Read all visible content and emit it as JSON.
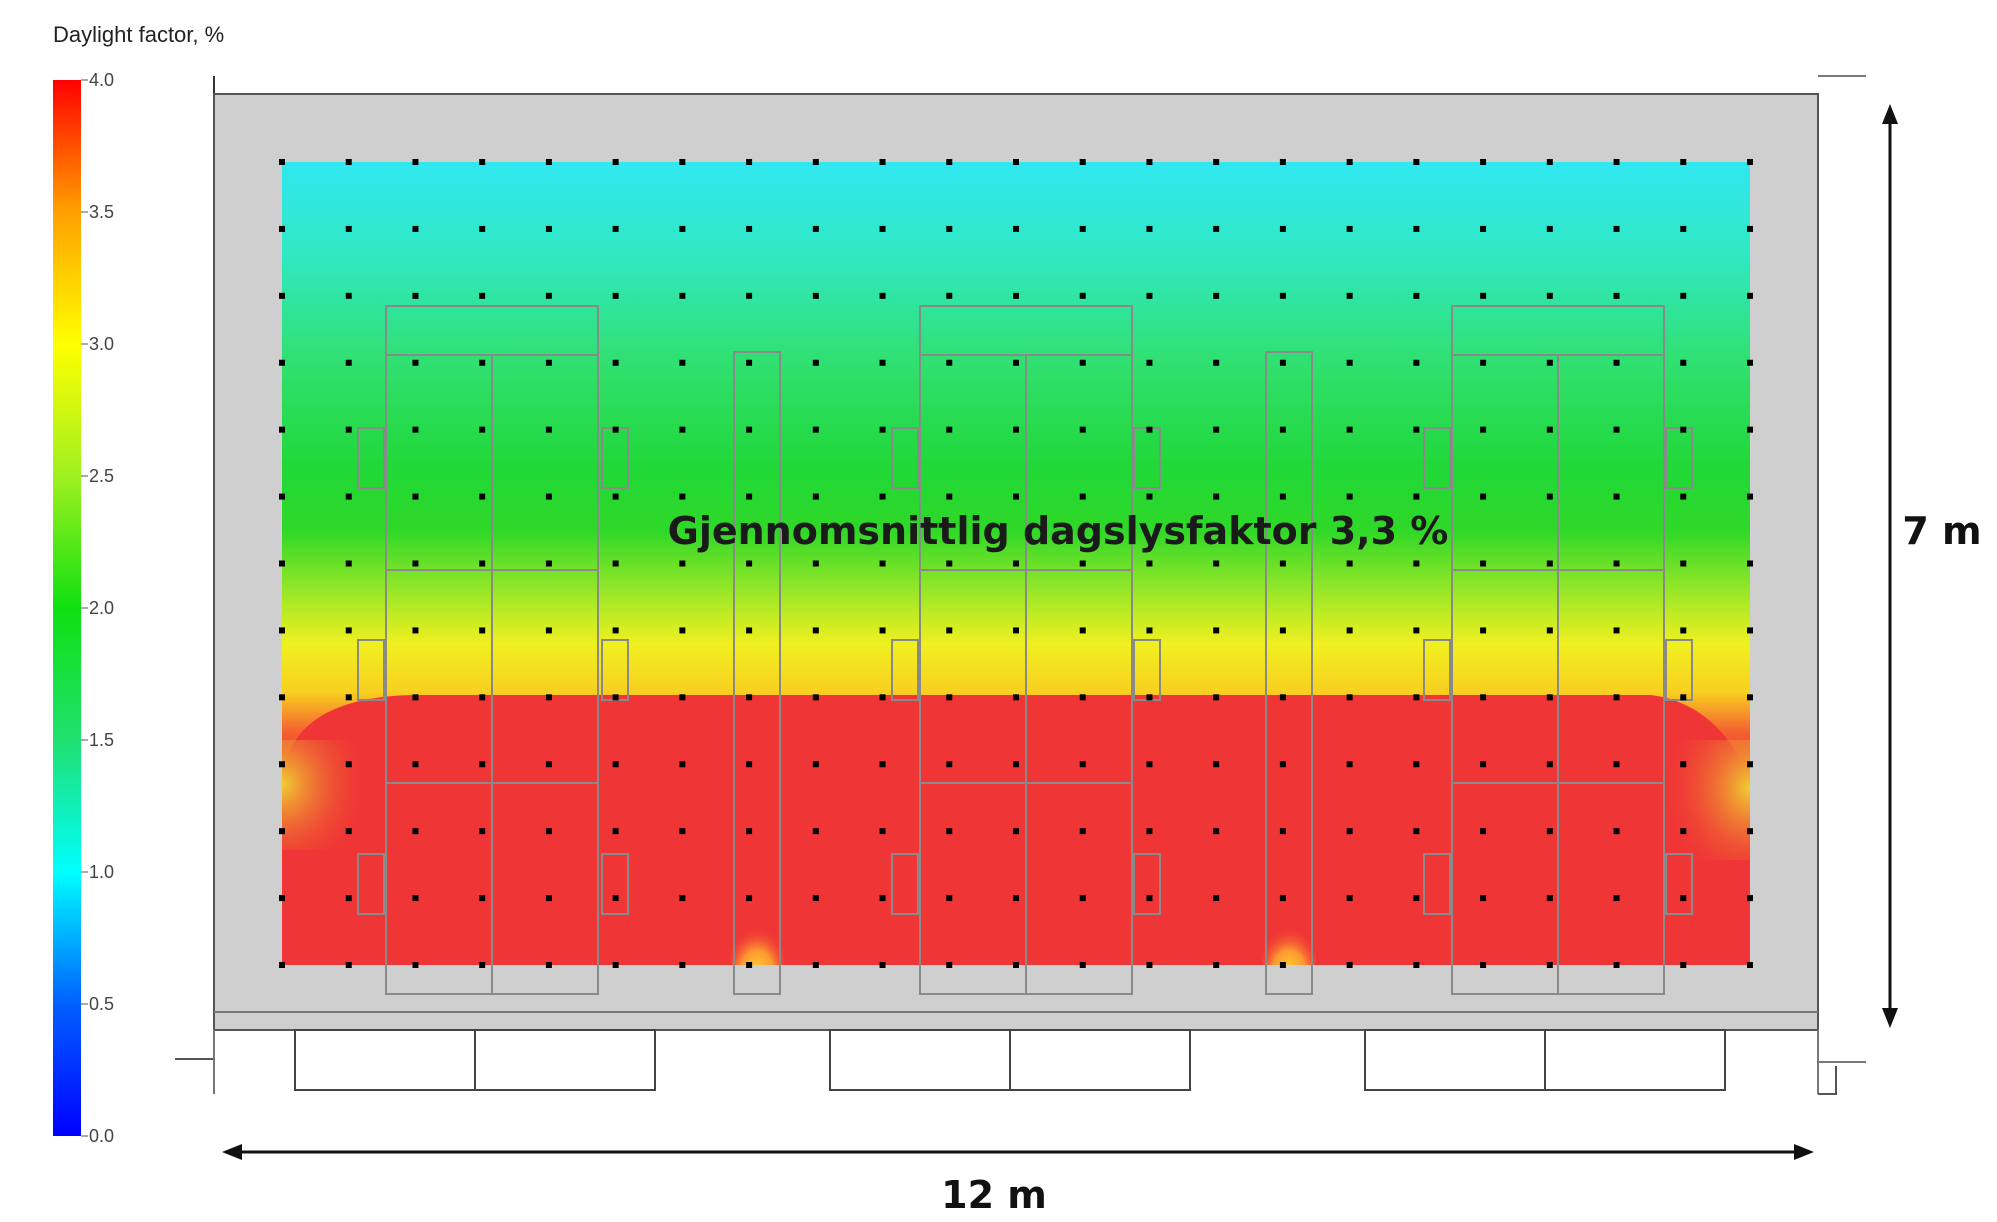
{
  "legend": {
    "title": "Daylight factor, %",
    "ticks": [
      "4.0",
      "3.5",
      "3.0",
      "2.5",
      "2.0",
      "1.5",
      "1.0",
      "0.5",
      "0.0"
    ]
  },
  "plan": {
    "average_label": "Gjennomsnittlig dagslysfaktor 3,3 %",
    "depth_label": "7 m",
    "width_label": "12 m"
  },
  "colors": {
    "scale": [
      "#0010ff",
      "#00a0ff",
      "#00f0f0",
      "#20e080",
      "#20e020",
      "#ffff20",
      "#ffa020",
      "#f03030"
    ],
    "wall": "#cfcfcf",
    "grid_point": "#000000"
  }
}
